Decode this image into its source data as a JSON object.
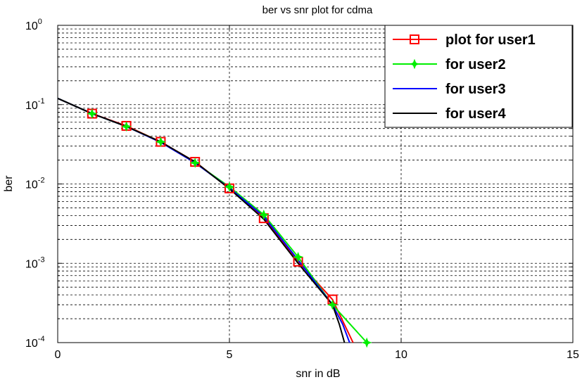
{
  "chart_data": {
    "type": "line",
    "title": "ber vs snr plot for cdma",
    "xlabel": "snr in dB",
    "ylabel": "ber",
    "xlim": [
      0,
      15
    ],
    "ylim": [
      0.0001,
      1
    ],
    "yscale": "log",
    "grid": true,
    "legend_position": "top-right",
    "x_ticks": [
      0,
      5,
      10,
      15
    ],
    "x_tick_labels": [
      "0",
      "5",
      "10",
      "15"
    ],
    "y_ticks": [
      {
        "value": 1,
        "base": "10",
        "exp": "0"
      },
      {
        "value": 0.1,
        "base": "10",
        "exp": "-1"
      },
      {
        "value": 0.01,
        "base": "10",
        "exp": "-2"
      },
      {
        "value": 0.001,
        "base": "10",
        "exp": "-3"
      },
      {
        "value": 0.0001,
        "base": "10",
        "exp": "-4"
      }
    ],
    "series": [
      {
        "name": "plot for user1",
        "color": "#ff0000",
        "marker": "square",
        "x": [
          0,
          1,
          2,
          3,
          4,
          5,
          6,
          7,
          8,
          8.6
        ],
        "y": [
          0.12,
          0.077,
          0.054,
          0.034,
          0.019,
          0.0088,
          0.0037,
          0.00105,
          0.00035,
          0.0001
        ]
      },
      {
        "name": "for user2",
        "color": "#00ee00",
        "marker": "star",
        "x": [
          0,
          1,
          2,
          3,
          4,
          5,
          6,
          7,
          8,
          9
        ],
        "y": [
          0.12,
          0.077,
          0.053,
          0.034,
          0.0185,
          0.0092,
          0.0041,
          0.0012,
          0.0003,
          0.0001
        ]
      },
      {
        "name": "for user3",
        "color": "#0000ff",
        "marker": "none",
        "x": [
          0,
          1,
          2,
          3,
          4,
          5,
          6,
          7,
          8,
          8.3,
          8.5
        ],
        "y": [
          0.12,
          0.077,
          0.053,
          0.0335,
          0.0185,
          0.0089,
          0.0039,
          0.0011,
          0.0003,
          0.00017,
          0.0001
        ]
      },
      {
        "name": "for user4",
        "color": "#000000",
        "marker": "none",
        "x": [
          0,
          1,
          2,
          3,
          4,
          5,
          6,
          7,
          8,
          8.2,
          8.35
        ],
        "y": [
          0.12,
          0.077,
          0.053,
          0.034,
          0.019,
          0.0087,
          0.0036,
          0.001,
          0.0003,
          0.00017,
          0.0001
        ]
      }
    ]
  }
}
